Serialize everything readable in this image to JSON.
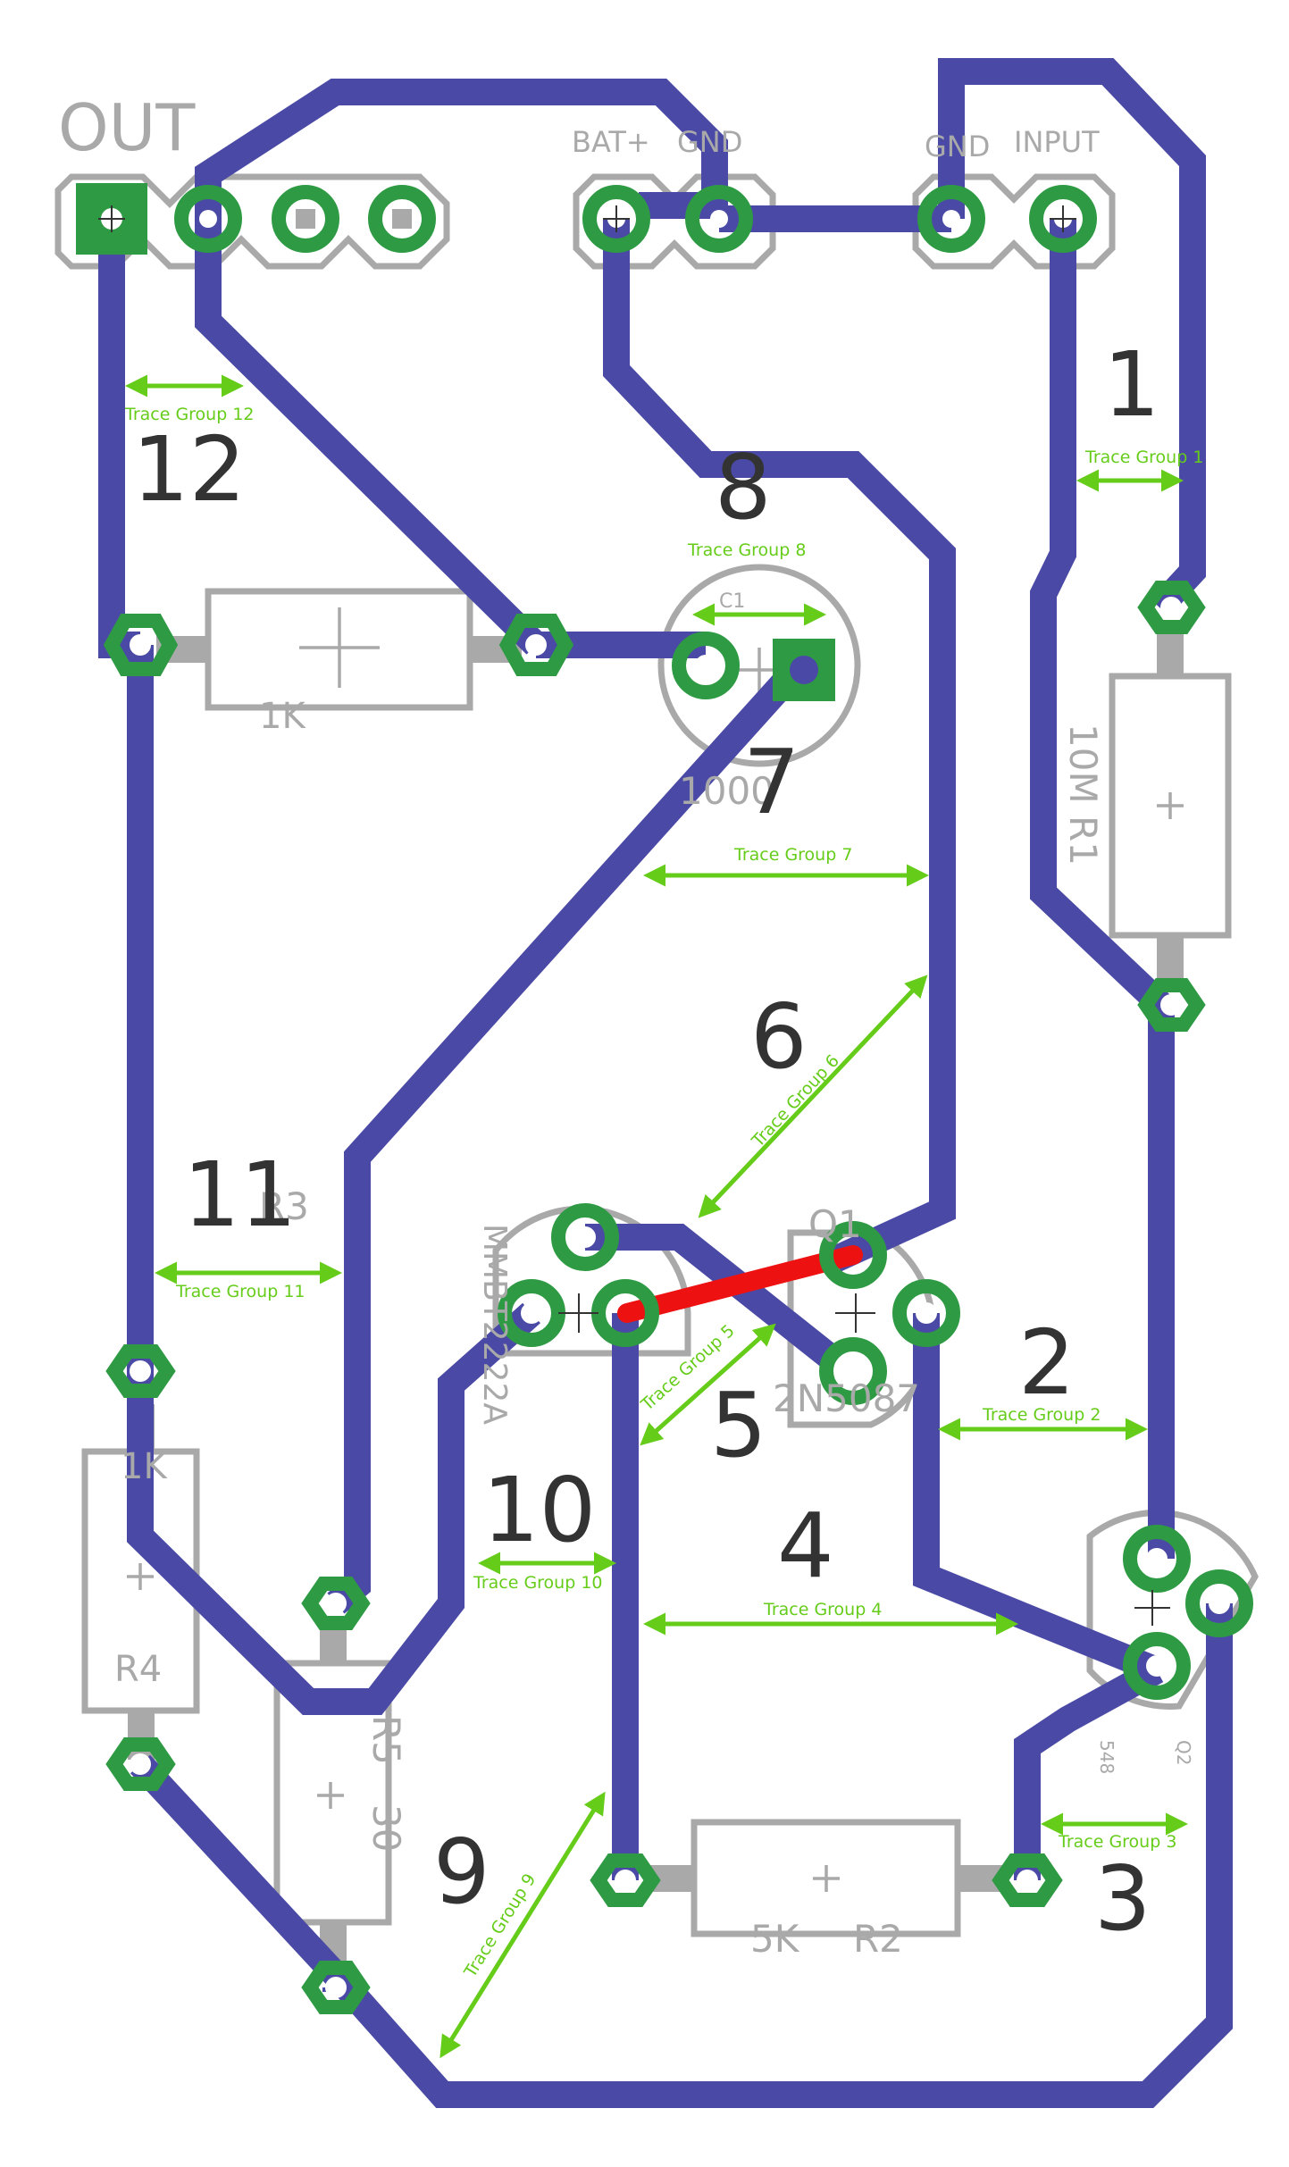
{
  "silkscreen": {
    "out_header": "OUT",
    "bat_plus": "BAT+",
    "gnd_left": "GND",
    "gnd_right": "GND",
    "input": "INPUT",
    "r_top_value": "1K",
    "cap_name": "C1",
    "cap_value": "1000",
    "r1_name": "10M R1",
    "r3_name": "R3",
    "q_left_name": "MMBT2222A",
    "q_mid_name": "Q1",
    "q_mid_part": "2N5087",
    "q_right_part": "548",
    "q_right_name": "Q2",
    "r4_value": "1K",
    "r4_name": "R4",
    "r5_name": "R5",
    "r5_value": "30",
    "r2_value": "5K",
    "r2_name": "R2"
  },
  "trace_groups": [
    {
      "number": "1",
      "label": "Trace Group 1"
    },
    {
      "number": "2",
      "label": "Trace Group 2"
    },
    {
      "number": "3",
      "label": "Trace Group 3"
    },
    {
      "number": "4",
      "label": "Trace Group 4"
    },
    {
      "number": "5",
      "label": "Trace Group 5"
    },
    {
      "number": "6",
      "label": "Trace Group 6"
    },
    {
      "number": "7",
      "label": "Trace Group 7"
    },
    {
      "number": "8",
      "label": "Trace Group 8"
    },
    {
      "number": "9",
      "label": "Trace Group 9"
    },
    {
      "number": "10",
      "label": "Trace Group 10"
    },
    {
      "number": "11",
      "label": "Trace Group 11"
    },
    {
      "number": "12",
      "label": "Trace Group 12"
    }
  ],
  "colors": {
    "trace": "#4a4aa6",
    "pad": "#2e9a43",
    "silkscreen": "#a9a9a9",
    "annotation": "#66cc1a",
    "highlight_jumper": "#ee1111"
  }
}
